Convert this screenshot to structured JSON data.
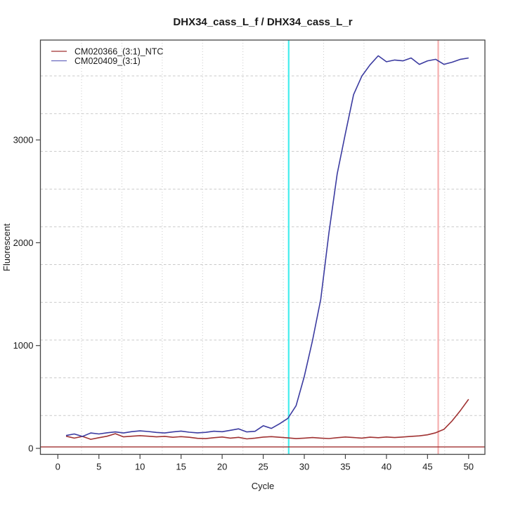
{
  "title": "DHX34_cass_L_f / DHX34_cass_L_r",
  "chart_data": {
    "type": "line",
    "title": "DHX34_cass_L_f / DHX34_cass_L_r",
    "xlabel": "Cycle",
    "ylabel": "Fluorescent",
    "x_ticks": [
      0,
      5,
      10,
      15,
      20,
      25,
      30,
      35,
      40,
      45,
      50
    ],
    "y_ticks": [
      0,
      1000,
      2000,
      3000
    ],
    "xlim": [
      -2.1,
      52
    ],
    "ylim": [
      -65,
      3970
    ],
    "grid": true,
    "legend_position": "top-left",
    "cycles": [
      1,
      2,
      3,
      4,
      5,
      6,
      7,
      8,
      9,
      10,
      11,
      12,
      13,
      14,
      15,
      16,
      17,
      18,
      19,
      20,
      21,
      22,
      23,
      24,
      25,
      26,
      27,
      28,
      29,
      30,
      31,
      32,
      33,
      34,
      35,
      36,
      37,
      38,
      39,
      40,
      41,
      42,
      43,
      44,
      45,
      46,
      47,
      48,
      49,
      50
    ],
    "series": [
      {
        "name": "CM020366_(3:1)_NTC",
        "color": "#A03232",
        "values": [
          118,
          100,
          116,
          88,
          104,
          118,
          143,
          112,
          118,
          124,
          118,
          112,
          117,
          108,
          114,
          108,
          98,
          95,
          104,
          111,
          100,
          107,
          92,
          100,
          110,
          114,
          108,
          102,
          95,
          100,
          105,
          100,
          96,
          104,
          111,
          105,
          100,
          109,
          104,
          111,
          105,
          111,
          117,
          122,
          132,
          152,
          185,
          268,
          368,
          478
        ]
      },
      {
        "name": "CM020409_(3:1)",
        "color": "#3B3BA0",
        "values": [
          125,
          140,
          116,
          150,
          140,
          152,
          160,
          150,
          163,
          170,
          164,
          155,
          150,
          160,
          168,
          157,
          151,
          156,
          167,
          162,
          176,
          190,
          160,
          166,
          220,
          194,
          240,
          292,
          415,
          700,
          1050,
          1450,
          2100,
          2670,
          3060,
          3440,
          3620,
          3730,
          3818,
          3760,
          3777,
          3769,
          3797,
          3735,
          3769,
          3784,
          3735,
          3756,
          3784,
          3797
        ]
      }
    ],
    "threshold_line": {
      "value": 14,
      "color": "#A03232"
    },
    "ct_lines": [
      {
        "cycle": 28.1,
        "color": "#45EDED",
        "label": "ct-line-sample"
      },
      {
        "cycle": 46.3,
        "color": "#F5AFAF",
        "label": "ct-line-ntc"
      }
    ],
    "grid_color": "#C9C9C9",
    "box_color": "#444444"
  }
}
